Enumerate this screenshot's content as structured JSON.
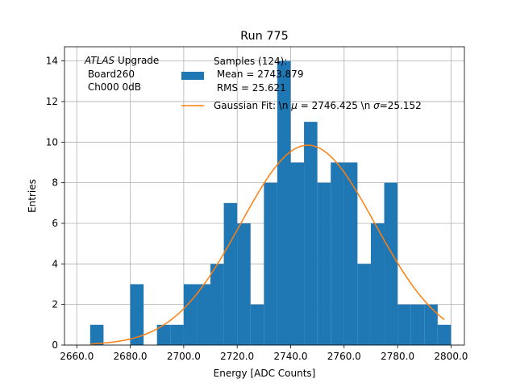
{
  "chart_data": {
    "type": "bar",
    "title": "Run 775",
    "xlabel": "Energy [ADC Counts]",
    "ylabel": "Entries",
    "xlim": [
      2655.4,
      2805.0
    ],
    "ylim": [
      0,
      14.7
    ],
    "grid": true,
    "x_ticks": [
      2660,
      2680,
      2700,
      2720,
      2740,
      2760,
      2780,
      2800
    ],
    "x_tick_labels": [
      "2660.0",
      "2680.0",
      "2700.0",
      "2720.0",
      "2740.0",
      "2760.0",
      "2780.0",
      "2800.0"
    ],
    "y_ticks": [
      0,
      2,
      4,
      6,
      8,
      10,
      12,
      14
    ],
    "y_tick_labels": [
      "0",
      "2",
      "4",
      "6",
      "8",
      "10",
      "12",
      "14"
    ],
    "bin_edges": [
      2665,
      2670,
      2675,
      2680,
      2685,
      2690,
      2695,
      2700,
      2705,
      2710,
      2715,
      2720,
      2725,
      2730,
      2735,
      2740,
      2745,
      2750,
      2755,
      2760,
      2765,
      2770,
      2775,
      2780,
      2785,
      2790,
      2795,
      2800
    ],
    "counts": [
      1,
      0,
      0,
      3,
      0,
      1,
      1,
      3,
      3,
      4,
      7,
      6,
      2,
      8,
      14,
      9,
      11,
      8,
      9,
      9,
      4,
      6,
      8,
      2,
      2,
      2,
      1
    ],
    "histogram_color": "#1f77b4",
    "fit": {
      "mu": 2746.425,
      "sigma": 25.152,
      "amplitude": 9.85,
      "x_range": [
        2665,
        2797.5
      ],
      "color": "#ff7f0e"
    },
    "legend": {
      "position": "top-right",
      "samples_title": "Samples (124):",
      "samples_mean": " Mean = 2743.879",
      "samples_rms": " RMS = 25.621",
      "fit_prefix": "Gaussian Fit: \\n ",
      "fit_mu_symbol": "μ",
      "fit_mid": " = 2746.425 \\n ",
      "fit_sigma_symbol": "σ",
      "fit_suffix": "=25.152"
    },
    "annotation": {
      "atlas": "ATLAS",
      "upgrade": " Upgrade",
      "board": " Board260",
      "channel": " Ch000 0dB"
    }
  }
}
